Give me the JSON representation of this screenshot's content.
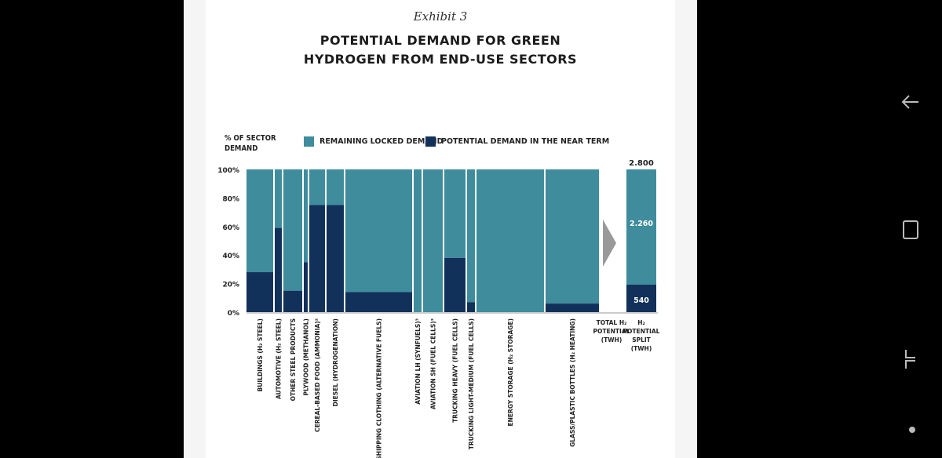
{
  "exhibit": "Exhibit 3",
  "title_line1": "POTENTIAL DEMAND FOR GREEN",
  "title_line2": "HYDROGEN FROM END-USE SECTORS",
  "ylabel_line1": "% OF SECTOR",
  "ylabel_line2": "DEMAND",
  "legend": {
    "locked": "REMAINING LOCKED DEMAND",
    "potential": "POTENTIAL DEMAND IN THE NEAR TERM"
  },
  "colors": {
    "locked": "#3f8c9d",
    "potential": "#12315a"
  },
  "chart_data": [
    {
      "type": "bar",
      "subtype": "stacked-mekko",
      "ylim": [
        0,
        100
      ],
      "yticks": [
        "100%",
        "80%",
        "60%",
        "40%",
        "20%",
        "0%"
      ],
      "categories": [
        {
          "label": "BUILDINGS (H₂ STEEL)",
          "width": 34,
          "potential": 28
        },
        {
          "label": "AUTOMOTIVE (H₂ STEEL)",
          "width": 9,
          "potential": 59
        },
        {
          "label": "OTHER STEEL PRODUCTS",
          "width": 24,
          "potential": 15
        },
        {
          "label": "PLYWOOD (METHANOL)",
          "width": 5,
          "potential": 35
        },
        {
          "label": "CEREAL-BASED FOOD (AMMONIA)²",
          "width": 20,
          "potential": 75
        },
        {
          "label": "DIESEL (HYDROGENATION)",
          "width": 22,
          "potential": 75
        },
        {
          "label": "SHIPPING CLOTHING (ALTERNATIVE FUELS)",
          "width": 85,
          "potential": 14
        },
        {
          "label": "AVIATION LH (SYNFUELS)³",
          "width": 10,
          "potential": 0
        },
        {
          "label": "AVIATION SH (FUEL CELLS)³",
          "width": 25,
          "potential": 0
        },
        {
          "label": "TRUCKING HEAVY (FUEL CELLS)",
          "width": 27,
          "potential": 38
        },
        {
          "label": "TRUCKING LIGHT-MEDIUM (FUEL CELLS)",
          "width": 10,
          "potential": 7
        },
        {
          "label": "ENERGY STORAGE (H₂ STORAGE)",
          "width": 86,
          "potential": 0
        },
        {
          "label": "GLASS/PLASTIC BOTTLES (H₂ HEATING)",
          "width": 68,
          "potential": 6
        }
      ],
      "series": [
        {
          "name": "POTENTIAL DEMAND IN THE NEAR TERM"
        },
        {
          "name": "REMAINING LOCKED DEMAND"
        }
      ]
    },
    {
      "type": "bar",
      "subtype": "stacked-single",
      "total": "2.800",
      "segments": {
        "locked": "2.260",
        "potential": "540"
      },
      "locked_value": 2260,
      "potential_value": 540,
      "total_value": 2800,
      "xlabels": {
        "total_potential": [
          "TOTAL H₂",
          "POTENTIAL",
          "(TWH)"
        ],
        "potential_split": [
          "H₂",
          "POTENTIAL",
          "SPLIT",
          "(TWH)"
        ]
      }
    }
  ]
}
